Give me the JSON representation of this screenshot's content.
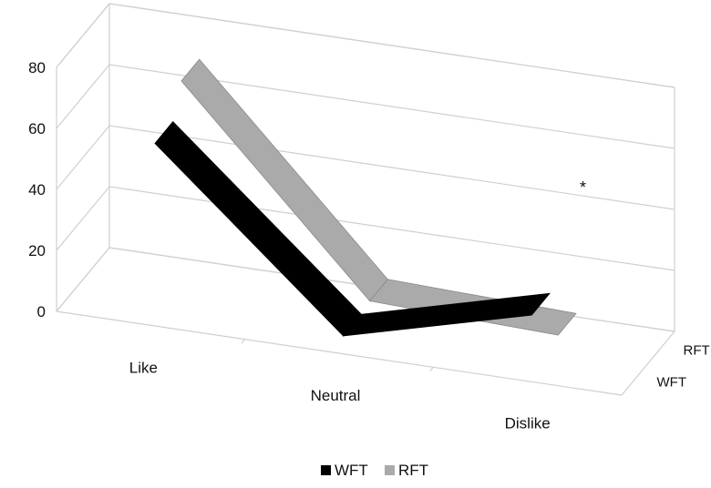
{
  "chart_data": {
    "type": "line",
    "style": "3d-ribbon",
    "categories": [
      "Like",
      "Neutral",
      "Dislike"
    ],
    "series": [
      {
        "name": "WFT",
        "values": [
          58,
          4,
          20
        ],
        "color": "#000000"
      },
      {
        "name": "RFT",
        "values": [
          68,
          5,
          3
        ],
        "color": "#aaaaaa"
      }
    ],
    "depth_labels": [
      "RFT",
      "WFT"
    ],
    "ylim": [
      0,
      80
    ],
    "yticks": [
      "0",
      "20",
      "40",
      "60",
      "80"
    ],
    "grid": true,
    "legend": "bottom-center",
    "annotation": "*"
  }
}
